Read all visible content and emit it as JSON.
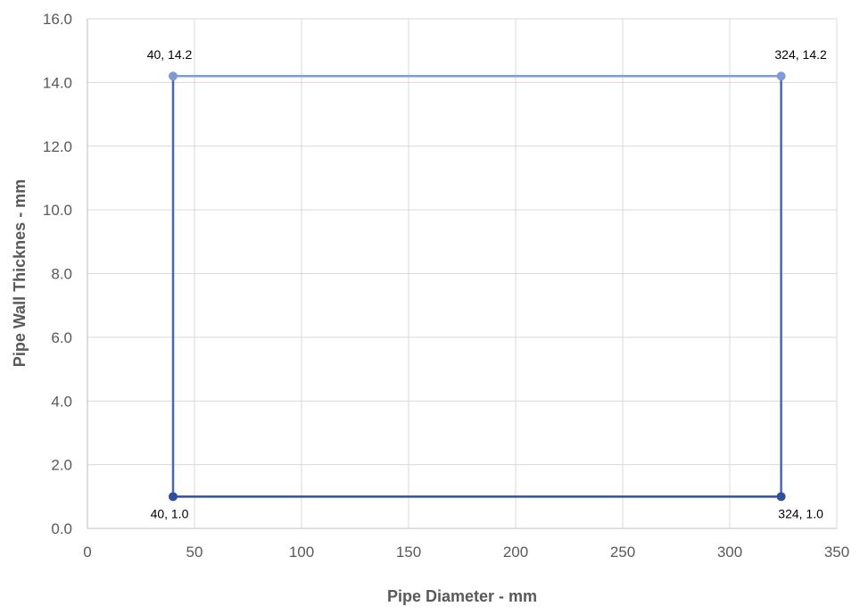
{
  "chart_data": {
    "type": "line",
    "title": "",
    "xlabel": "Pipe Diameter - mm",
    "ylabel": "Pipe Wall Thicknes - mm",
    "xlim": [
      0,
      350
    ],
    "ylim": [
      0,
      16
    ],
    "xticks": [
      0,
      50,
      100,
      150,
      200,
      250,
      300,
      350
    ],
    "yticks": [
      0,
      2,
      4,
      6,
      8,
      10,
      12,
      14,
      16
    ],
    "xtick_labels": [
      "0",
      "50",
      "100",
      "150",
      "200",
      "250",
      "300",
      "350"
    ],
    "ytick_labels": [
      "0.0",
      "2.0",
      "4.0",
      "6.0",
      "8.0",
      "10.0",
      "12.0",
      "14.0",
      "16.0"
    ],
    "grid": true,
    "legend": "none",
    "series": [
      {
        "color": "#2f4f9f",
        "x": [
          40,
          324
        ],
        "y": [
          1.0,
          1.0
        ],
        "labels": [
          "40, 1.0",
          "324, 1.0"
        ]
      },
      {
        "color": "#7f9bd3",
        "x": [
          40,
          324
        ],
        "y": [
          14.2,
          14.2
        ],
        "labels": [
          "40, 14.2",
          "324, 14.2"
        ]
      },
      {
        "color": "#4a67b0",
        "x": [
          40,
          40
        ],
        "y": [
          1.0,
          14.2
        ],
        "labels": []
      },
      {
        "color": "#4a67b0",
        "x": [
          324,
          324
        ],
        "y": [
          1.0,
          14.2
        ],
        "labels": []
      }
    ]
  }
}
